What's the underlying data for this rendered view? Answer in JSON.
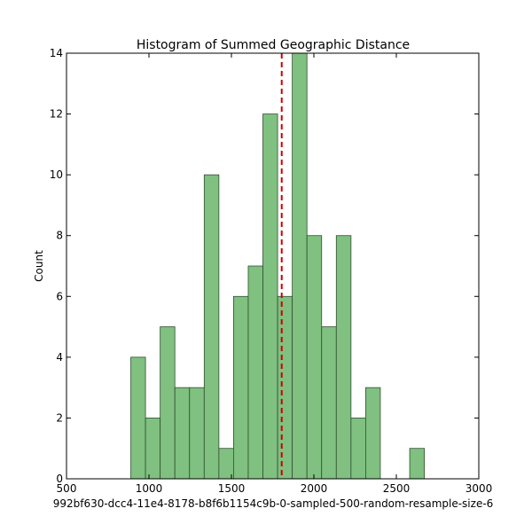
{
  "chart_data": {
    "type": "bar",
    "title": "Histogram of Summed Geographic Distance",
    "xlabel": "992bf630-dcc4-11e4-8178-b8f6b1154c9b-0-sampled-500-random-resample-size-6",
    "ylabel": "Count",
    "xlim": [
      500,
      3000
    ],
    "ylim": [
      0,
      14
    ],
    "x_ticks": [
      500,
      1000,
      1500,
      2000,
      2500,
      3000
    ],
    "y_ticks": [
      0,
      2,
      4,
      6,
      8,
      10,
      12,
      14
    ],
    "grid": false,
    "bins": [
      {
        "x0": 890,
        "x1": 979,
        "count": 4
      },
      {
        "x0": 979,
        "x1": 1068,
        "count": 2
      },
      {
        "x0": 1068,
        "x1": 1157,
        "count": 5
      },
      {
        "x0": 1157,
        "x1": 1246,
        "count": 3
      },
      {
        "x0": 1246,
        "x1": 1335,
        "count": 3
      },
      {
        "x0": 1335,
        "x1": 1424,
        "count": 10
      },
      {
        "x0": 1424,
        "x1": 1513,
        "count": 1
      },
      {
        "x0": 1513,
        "x1": 1602,
        "count": 6
      },
      {
        "x0": 1602,
        "x1": 1691,
        "count": 7
      },
      {
        "x0": 1691,
        "x1": 1780,
        "count": 12
      },
      {
        "x0": 1780,
        "x1": 1869,
        "count": 6
      },
      {
        "x0": 1869,
        "x1": 1958,
        "count": 14
      },
      {
        "x0": 1958,
        "x1": 2047,
        "count": 8
      },
      {
        "x0": 2047,
        "x1": 2136,
        "count": 5
      },
      {
        "x0": 2136,
        "x1": 2225,
        "count": 8
      },
      {
        "x0": 2225,
        "x1": 2314,
        "count": 2
      },
      {
        "x0": 2314,
        "x1": 2403,
        "count": 3
      },
      {
        "x0": 2581,
        "x1": 2670,
        "count": 1
      }
    ],
    "reference_line": {
      "x": 1805,
      "style": "dashed",
      "color": "#cc0000"
    },
    "bar_fill": "#80c080",
    "bar_edge": "#2f4f2f"
  }
}
